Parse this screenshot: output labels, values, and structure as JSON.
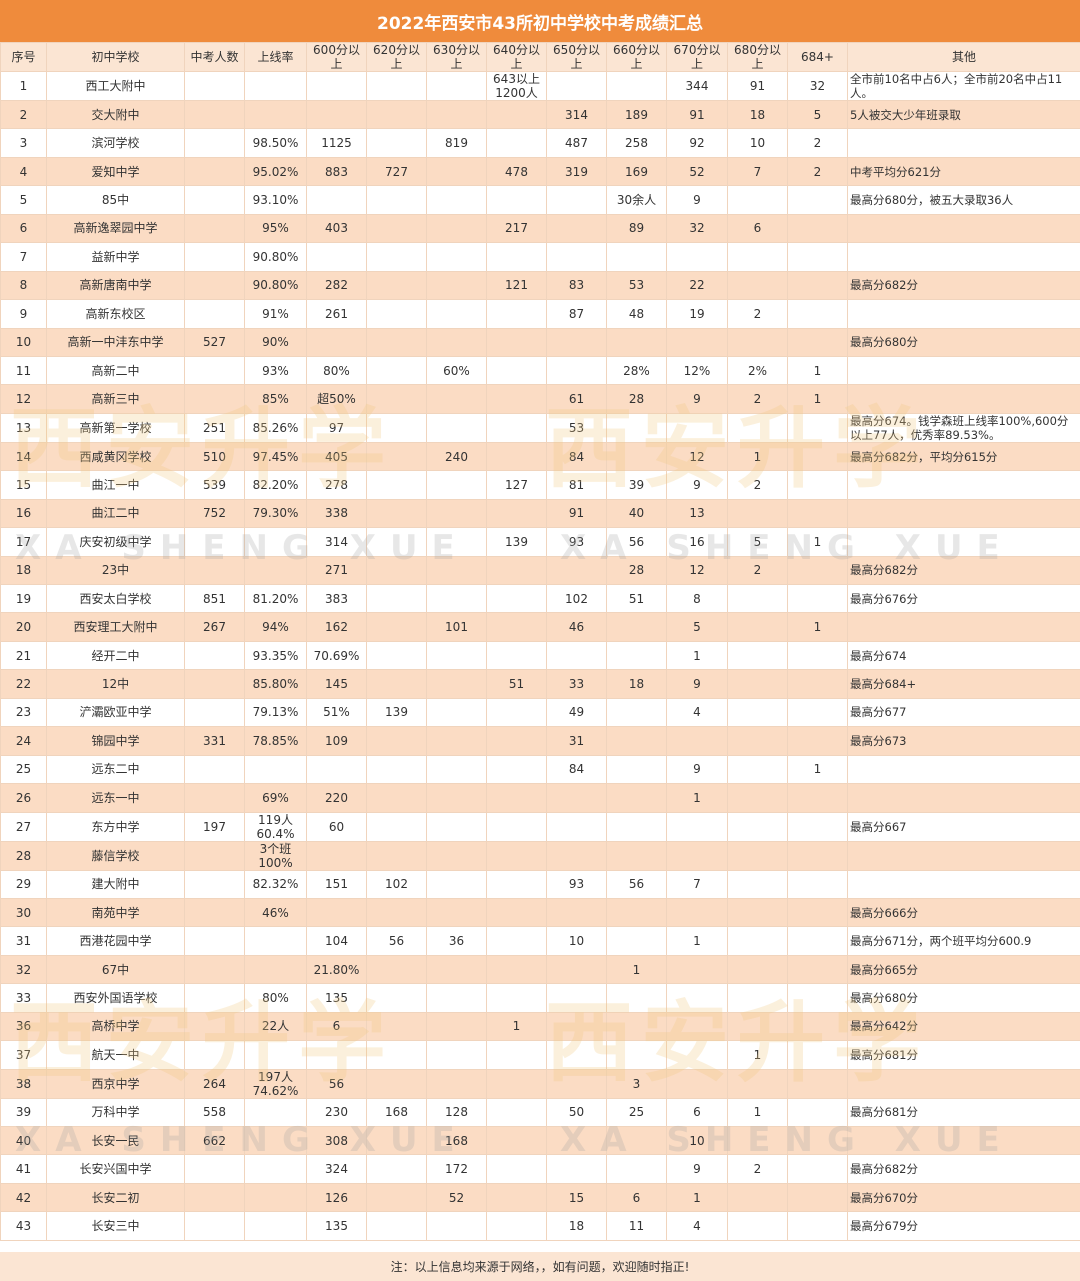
{
  "title": "2022年西安市43所初中学校中考成绩汇总",
  "columns": [
    "序号",
    "初中学校",
    "中考人数",
    "上线率",
    "600分以上",
    "620分以上",
    "630分以上",
    "640分以上",
    "650分以上",
    "660分以上",
    "670分以上",
    "680分以上",
    "684+",
    "其他"
  ],
  "rows": [
    [
      "1",
      "西工大附中",
      "",
      "",
      "",
      "",
      "",
      "643以上\n1200人",
      "",
      "",
      "344",
      "91",
      "32",
      "全市前10名中占6人；全市前20名中占11人。"
    ],
    [
      "2",
      "交大附中",
      "",
      "",
      "",
      "",
      "",
      "",
      "314",
      "189",
      "91",
      "18",
      "5",
      "5人被交大少年班录取"
    ],
    [
      "3",
      "滨河学校",
      "",
      "98.50%",
      "1125",
      "",
      "819",
      "",
      "487",
      "258",
      "92",
      "10",
      "2",
      ""
    ],
    [
      "4",
      "爱知中学",
      "",
      "95.02%",
      "883",
      "727",
      "",
      "478",
      "319",
      "169",
      "52",
      "7",
      "2",
      "中考平均分621分"
    ],
    [
      "5",
      "85中",
      "",
      "93.10%",
      "",
      "",
      "",
      "",
      "",
      "30余人",
      "9",
      "",
      "",
      "最高分680分，被五大录取36人"
    ],
    [
      "6",
      "高新逸翠园中学",
      "",
      "95%",
      "403",
      "",
      "",
      "217",
      "",
      "89",
      "32",
      "6",
      "",
      ""
    ],
    [
      "7",
      "益新中学",
      "",
      "90.80%",
      "",
      "",
      "",
      "",
      "",
      "",
      "",
      "",
      "",
      ""
    ],
    [
      "8",
      "高新唐南中学",
      "",
      "90.80%",
      "282",
      "",
      "",
      "121",
      "83",
      "53",
      "22",
      "",
      "",
      "最高分682分"
    ],
    [
      "9",
      "高新东校区",
      "",
      "91%",
      "261",
      "",
      "",
      "",
      "87",
      "48",
      "19",
      "2",
      "",
      ""
    ],
    [
      "10",
      "高新一中沣东中学",
      "527",
      "90%",
      "",
      "",
      "",
      "",
      "",
      "",
      "",
      "",
      "",
      "最高分680分"
    ],
    [
      "11",
      "高新二中",
      "",
      "93%",
      "80%",
      "",
      "60%",
      "",
      "",
      "28%",
      "12%",
      "2%",
      "1",
      ""
    ],
    [
      "12",
      "高新三中",
      "",
      "85%",
      "超50%",
      "",
      "",
      "",
      "61",
      "28",
      "9",
      "2",
      "1",
      ""
    ],
    [
      "13",
      "高新第一学校",
      "251",
      "85.26%",
      "97",
      "",
      "",
      "",
      "53",
      "",
      "",
      "",
      "",
      "最高分674。钱学森班上线率100%,600分以上77人，优秀率89.53%。"
    ],
    [
      "14",
      "西咸黄冈学校",
      "510",
      "97.45%",
      "405",
      "",
      "240",
      "",
      "84",
      "",
      "12",
      "1",
      "",
      "最高分682分，平均分615分"
    ],
    [
      "15",
      "曲江一中",
      "539",
      "82.20%",
      "278",
      "",
      "",
      "127",
      "81",
      "39",
      "9",
      "2",
      "",
      ""
    ],
    [
      "16",
      "曲江二中",
      "752",
      "79.30%",
      "338",
      "",
      "",
      "",
      "91",
      "40",
      "13",
      "",
      "",
      ""
    ],
    [
      "17",
      "庆安初级中学",
      "",
      "",
      "314",
      "",
      "",
      "139",
      "93",
      "56",
      "16",
      "5",
      "1",
      ""
    ],
    [
      "18",
      "23中",
      "",
      "",
      "271",
      "",
      "",
      "",
      "",
      "28",
      "12",
      "2",
      "",
      "最高分682分"
    ],
    [
      "19",
      "西安太白学校",
      "851",
      "81.20%",
      "383",
      "",
      "",
      "",
      "102",
      "51",
      "8",
      "",
      "",
      "最高分676分"
    ],
    [
      "20",
      "西安理工大附中",
      "267",
      "94%",
      "162",
      "",
      "101",
      "",
      "46",
      "",
      "5",
      "",
      "1",
      ""
    ],
    [
      "21",
      "经开二中",
      "",
      "93.35%",
      "70.69%",
      "",
      "",
      "",
      "",
      "",
      "1",
      "",
      "",
      "最高分674"
    ],
    [
      "22",
      "12中",
      "",
      "85.80%",
      "145",
      "",
      "",
      "51",
      "33",
      "18",
      "9",
      "",
      "",
      "最高分684+"
    ],
    [
      "23",
      "浐灞欧亚中学",
      "",
      "79.13%",
      "51%",
      "139",
      "",
      "",
      "49",
      "",
      "4",
      "",
      "",
      "最高分677"
    ],
    [
      "24",
      "锦园中学",
      "331",
      "78.85%",
      "109",
      "",
      "",
      "",
      "31",
      "",
      "",
      "",
      "",
      "最高分673"
    ],
    [
      "25",
      "远东二中",
      "",
      "",
      "",
      "",
      "",
      "",
      "84",
      "",
      "9",
      "",
      "1",
      ""
    ],
    [
      "26",
      "远东一中",
      "",
      "69%",
      "220",
      "",
      "",
      "",
      "",
      "",
      "1",
      "",
      "",
      ""
    ],
    [
      "27",
      "东方中学",
      "197",
      "119人\n60.4%",
      "60",
      "",
      "",
      "",
      "",
      "",
      "",
      "",
      "",
      "最高分667"
    ],
    [
      "28",
      "藤信学校",
      "",
      "3个班\n100%",
      "",
      "",
      "",
      "",
      "",
      "",
      "",
      "",
      "",
      ""
    ],
    [
      "29",
      "建大附中",
      "",
      "82.32%",
      "151",
      "102",
      "",
      "",
      "93",
      "56",
      "7",
      "",
      "",
      ""
    ],
    [
      "30",
      "南苑中学",
      "",
      "46%",
      "",
      "",
      "",
      "",
      "",
      "",
      "",
      "",
      "",
      "最高分666分"
    ],
    [
      "31",
      "西港花园中学",
      "",
      "",
      "104",
      "56",
      "36",
      "",
      "10",
      "",
      "1",
      "",
      "",
      "最高分671分，两个班平均分600.9"
    ],
    [
      "32",
      "67中",
      "",
      "",
      "21.80%",
      "",
      "",
      "",
      "",
      "1",
      "",
      "",
      "",
      "最高分665分"
    ],
    [
      "33",
      "西安外国语学校",
      "",
      "80%",
      "135",
      "",
      "",
      "",
      "",
      "",
      "",
      "",
      "",
      "最高分680分"
    ],
    [
      "36",
      "高桥中学",
      "",
      "22人",
      "6",
      "",
      "",
      "1",
      "",
      "",
      "",
      "",
      "",
      "最高分642分"
    ],
    [
      "37",
      "航天一中",
      "",
      "",
      "",
      "",
      "",
      "",
      "",
      "",
      "",
      "1",
      "",
      "最高分681分"
    ],
    [
      "38",
      "西京中学",
      "264",
      "197人\n74.62%",
      "56",
      "",
      "",
      "",
      "",
      "3",
      "",
      "",
      "",
      ""
    ],
    [
      "39",
      "万科中学",
      "558",
      "",
      "230",
      "168",
      "128",
      "",
      "50",
      "25",
      "6",
      "1",
      "",
      "最高分681分"
    ],
    [
      "40",
      "长安一民",
      "662",
      "",
      "308",
      "",
      "168",
      "",
      "",
      "",
      "10",
      "",
      "",
      ""
    ],
    [
      "41",
      "长安兴国中学",
      "",
      "",
      "324",
      "",
      "172",
      "",
      "",
      "",
      "9",
      "2",
      "",
      "最高分682分"
    ],
    [
      "42",
      "长安二初",
      "",
      "",
      "126",
      "",
      "52",
      "",
      "15",
      "6",
      "1",
      "",
      "",
      "最高分670分"
    ],
    [
      "43",
      "长安三中",
      "",
      "",
      "135",
      "",
      "",
      "",
      "18",
      "11",
      "4",
      "",
      "",
      "最高分679分"
    ]
  ],
  "footer": "注：以上信息均来源于网络，，如有问题，欢迎随时指正!",
  "watermark": {
    "cn_text": "西安升学",
    "en_text": "XA SHENG XUE"
  },
  "colors": {
    "title_bg": "#ef8b3c",
    "header_bg": "#fbe5d3",
    "stripe": "#fbdcc4"
  }
}
